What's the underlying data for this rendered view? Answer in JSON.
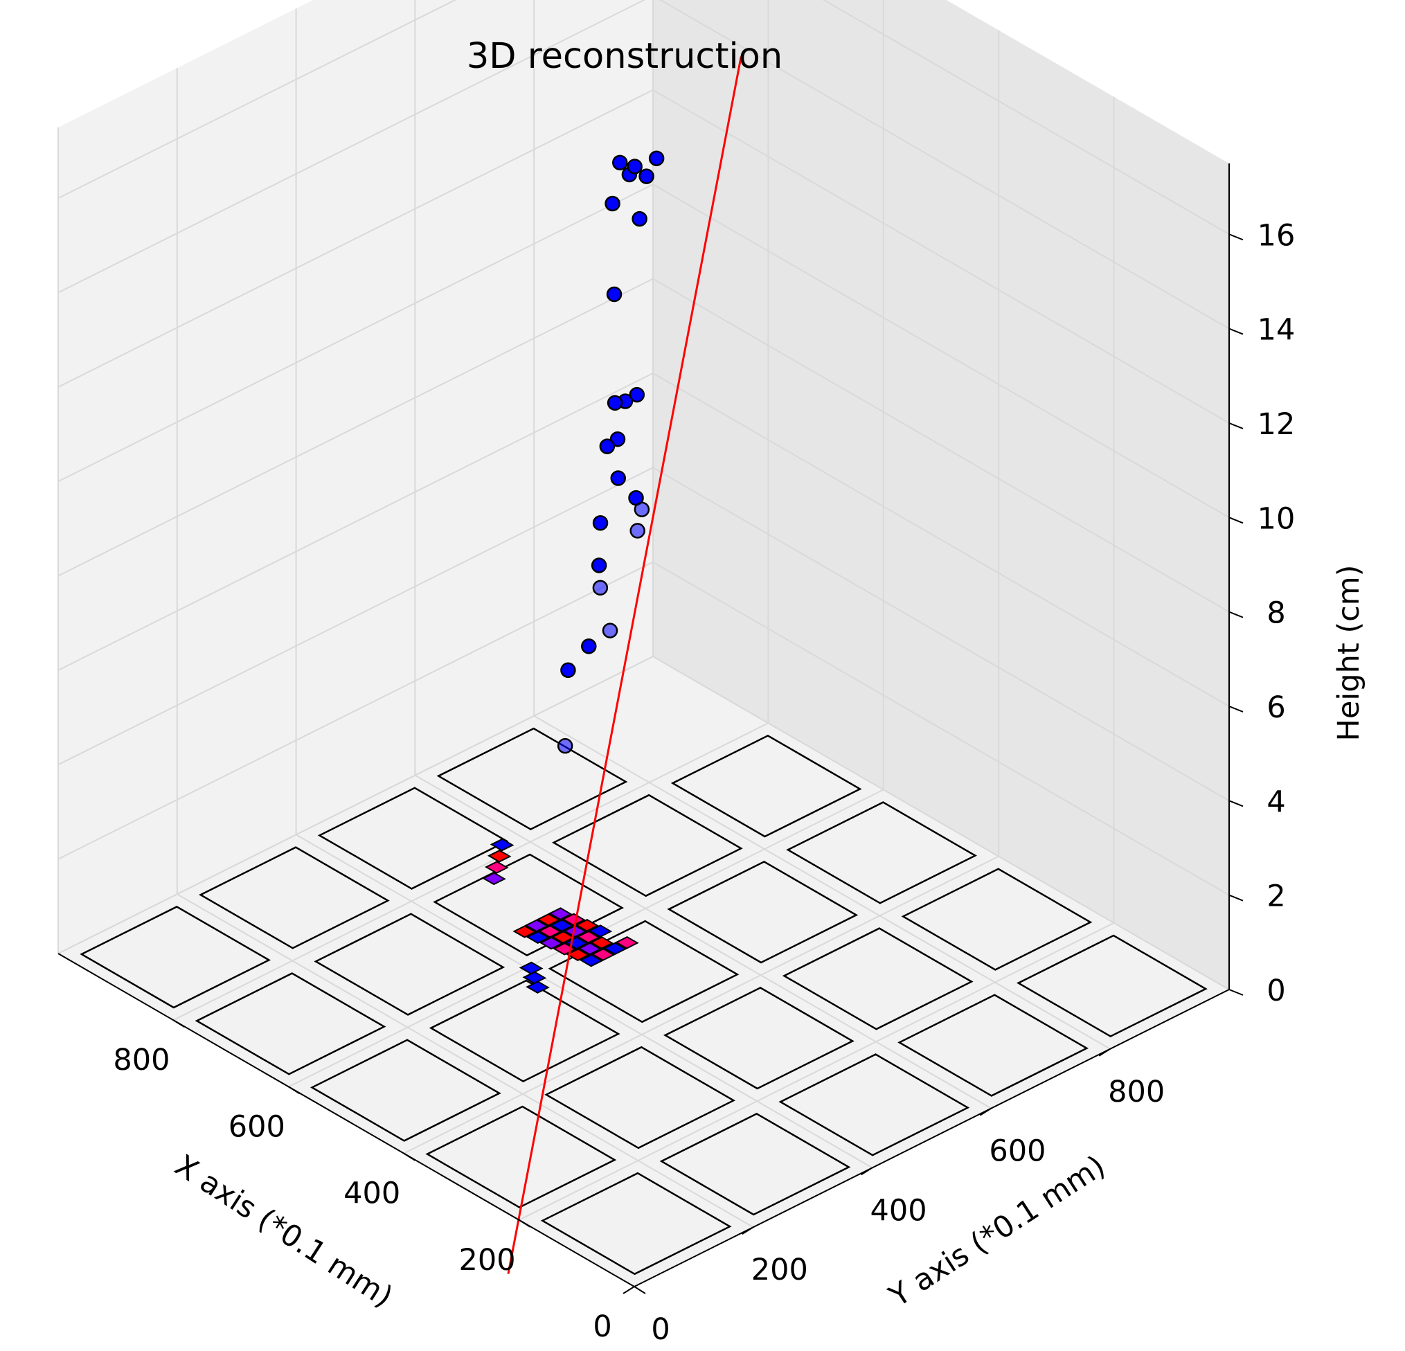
{
  "chart_data": {
    "type": "scatter",
    "title": "3D reconstruction",
    "xlabel": "X axis (*0.1 mm)",
    "ylabel": "Y axis (*0.1 mm)",
    "zlabel": "Height (cm)",
    "x_ticks": [
      "0",
      "200",
      "400",
      "600",
      "800"
    ],
    "y_ticks": [
      "0",
      "200",
      "400",
      "600",
      "800"
    ],
    "z_ticks": [
      "0",
      "2",
      "4",
      "6",
      "8",
      "10",
      "12",
      "14",
      "16"
    ],
    "xlim": [
      0,
      1000
    ],
    "ylim": [
      0,
      1000
    ],
    "zlim": [
      0,
      17.5
    ],
    "grid": true,
    "colors": {
      "points": "#0000ff",
      "fit_line": "#ff0000",
      "hit_pixels": [
        "#0000ff",
        "#8000ff",
        "#ff0080",
        "#ff0000"
      ]
    },
    "series": [
      {
        "kind": "scatter3d",
        "points_xyz": [
          [
            537,
            496,
            16.9
          ],
          [
            533,
            508,
            16.6
          ],
          [
            534,
            518,
            16.7
          ],
          [
            524,
            528,
            16.5
          ],
          [
            522,
            543,
            16.8
          ],
          [
            553,
            499,
            15.9
          ],
          [
            537,
            529,
            15.5
          ],
          [
            550,
            499,
            14.0
          ],
          [
            522,
            510,
            12.0
          ],
          [
            536,
            504,
            11.8
          ],
          [
            542,
            497,
            11.0
          ],
          [
            557,
            507,
            11.6
          ],
          [
            554,
            491,
            10.8
          ],
          [
            539,
            525,
            9.6
          ],
          [
            523,
            512,
            9.1
          ],
          [
            531,
            527,
            9.4
          ],
          [
            570,
            525,
            9.8
          ],
          [
            573,
            498,
            9.0
          ],
          [
            597,
            519,
            7.8
          ],
          [
            598,
            522,
            7.3
          ],
          [
            589,
            494,
            6.3
          ],
          [
            582,
            523,
            6.5
          ],
          [
            628,
            497,
            5.5
          ],
          [
            630,
            494,
            3.9
          ]
        ]
      },
      {
        "kind": "fit_line",
        "from_xyz": [
          575,
          445,
          0
        ],
        "to_xyz": [
          440,
          600,
          18.8
        ]
      }
    ],
    "detector_plane": {
      "description": "5x5 grid of square detector tiles at z=0 (corner tile missing)",
      "tile_size": 160,
      "tile_spacing": 200,
      "missing_tile": [
        0,
        0
      ]
    }
  }
}
